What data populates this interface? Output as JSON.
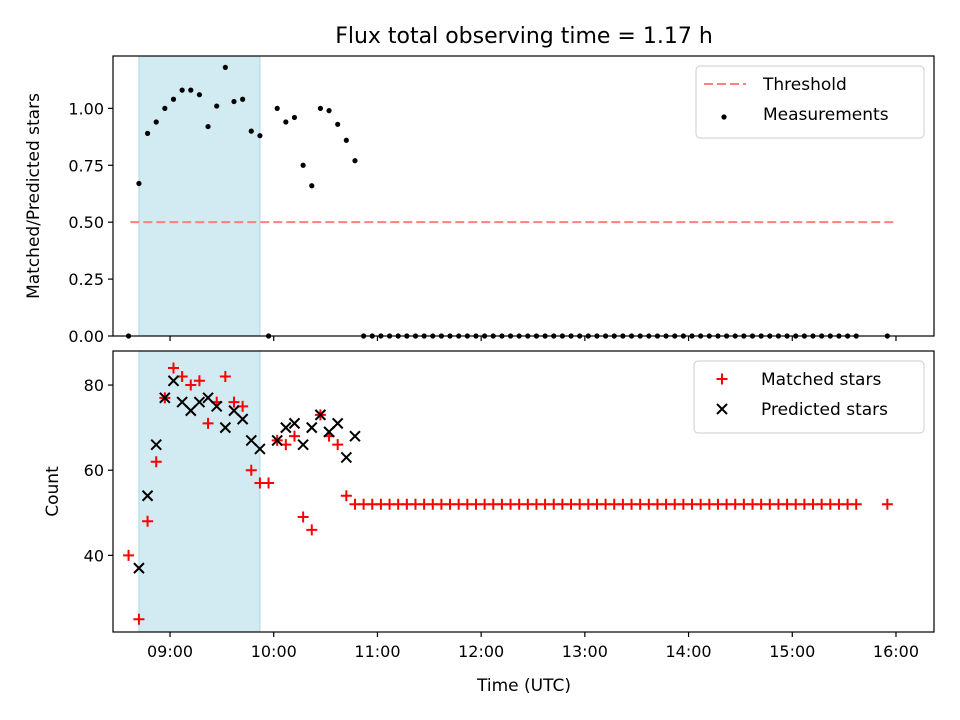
{
  "figure": {
    "title": "Flux total observing time = 1.17 h",
    "xlabel": "Time (UTC)"
  },
  "chart_data": [
    {
      "type": "scatter",
      "name": "top",
      "ylabel": "Matched/Predicted stars",
      "ylim": [
        0,
        1.23
      ],
      "xlim": [
        "08:27",
        "16:22"
      ],
      "yticks": [
        0.0,
        0.25,
        0.5,
        0.75,
        1.0
      ],
      "ytick_labels": [
        "0.00",
        "0.25",
        "0.50",
        "0.75",
        "1.00"
      ],
      "shaded_interval": [
        "08:42",
        "09:52"
      ],
      "legend_position": "upper right",
      "threshold": {
        "name": "Threshold",
        "value": 0.5,
        "x_range": [
          "08:37",
          "15:59"
        ],
        "color": "#ff7f7f"
      },
      "series": [
        {
          "name": "Measurements",
          "color": "#000000",
          "x": [
            "08:36",
            "08:42",
            "08:47",
            "08:52",
            "08:57",
            "09:02",
            "09:07",
            "09:12",
            "09:17",
            "09:22",
            "09:27",
            "09:32",
            "09:37",
            "09:42",
            "09:47",
            "09:52",
            "09:57",
            "10:02",
            "10:07",
            "10:12",
            "10:17",
            "10:22",
            "10:27",
            "10:32",
            "10:37",
            "10:42",
            "10:47",
            "10:52",
            "10:57",
            "11:02",
            "11:07",
            "11:12",
            "11:17",
            "11:22",
            "11:27",
            "11:32",
            "11:37",
            "11:42",
            "11:47",
            "11:52",
            "11:57",
            "12:02",
            "12:07",
            "12:12",
            "12:17",
            "12:22",
            "12:27",
            "12:32",
            "12:37",
            "12:42",
            "12:47",
            "12:52",
            "12:57",
            "13:02",
            "13:07",
            "13:12",
            "13:17",
            "13:22",
            "13:27",
            "13:32",
            "13:37",
            "13:42",
            "13:47",
            "13:52",
            "13:57",
            "14:02",
            "14:07",
            "14:12",
            "14:17",
            "14:22",
            "14:27",
            "14:32",
            "14:37",
            "14:42",
            "14:47",
            "14:52",
            "14:57",
            "15:02",
            "15:07",
            "15:12",
            "15:17",
            "15:22",
            "15:27",
            "15:32",
            "15:37",
            "15:55"
          ],
          "y": [
            0.0,
            0.67,
            0.89,
            0.94,
            1.0,
            1.04,
            1.08,
            1.08,
            1.06,
            0.92,
            1.01,
            1.18,
            1.03,
            1.04,
            0.9,
            0.88,
            0.0,
            1.0,
            0.94,
            0.96,
            0.75,
            0.66,
            1.0,
            0.99,
            0.93,
            0.86,
            0.77,
            0,
            0,
            0,
            0,
            0,
            0,
            0,
            0,
            0,
            0,
            0,
            0,
            0,
            0,
            0,
            0,
            0,
            0,
            0,
            0,
            0,
            0,
            0,
            0,
            0,
            0,
            0,
            0,
            0,
            0,
            0,
            0,
            0,
            0,
            0,
            0,
            0,
            0,
            0,
            0,
            0,
            0,
            0,
            0,
            0,
            0,
            0,
            0,
            0,
            0,
            0,
            0,
            0,
            0,
            0,
            0,
            0,
            0,
            0
          ]
        }
      ]
    },
    {
      "type": "scatter",
      "name": "bottom",
      "ylabel": "Count",
      "ylim": [
        22,
        88
      ],
      "xlim": [
        "08:27",
        "16:22"
      ],
      "yticks": [
        40,
        60,
        80
      ],
      "ytick_labels": [
        "40",
        "60",
        "80"
      ],
      "xticks": [
        "09:00",
        "10:00",
        "11:00",
        "12:00",
        "13:00",
        "14:00",
        "15:00",
        "16:00"
      ],
      "shaded_interval": [
        "08:42",
        "09:52"
      ],
      "legend_position": "upper right",
      "series": [
        {
          "name": "Matched stars",
          "marker": "+",
          "color": "#ff0000",
          "x": [
            "08:36",
            "08:42",
            "08:47",
            "08:52",
            "08:57",
            "09:02",
            "09:07",
            "09:12",
            "09:17",
            "09:22",
            "09:27",
            "09:32",
            "09:37",
            "09:42",
            "09:47",
            "09:52",
            "09:57",
            "10:02",
            "10:07",
            "10:12",
            "10:17",
            "10:22",
            "10:27",
            "10:32",
            "10:37",
            "10:42",
            "10:47",
            "10:52",
            "10:57",
            "11:02",
            "11:07",
            "11:12",
            "11:17",
            "11:22",
            "11:27",
            "11:32",
            "11:37",
            "11:42",
            "11:47",
            "11:52",
            "11:57",
            "12:02",
            "12:07",
            "12:12",
            "12:17",
            "12:22",
            "12:27",
            "12:32",
            "12:37",
            "12:42",
            "12:47",
            "12:52",
            "12:57",
            "13:02",
            "13:07",
            "13:12",
            "13:17",
            "13:22",
            "13:27",
            "13:32",
            "13:37",
            "13:42",
            "13:47",
            "13:52",
            "13:57",
            "14:02",
            "14:07",
            "14:12",
            "14:17",
            "14:22",
            "14:27",
            "14:32",
            "14:37",
            "14:42",
            "14:47",
            "14:52",
            "14:57",
            "15:02",
            "15:07",
            "15:12",
            "15:17",
            "15:22",
            "15:27",
            "15:32",
            "15:37",
            "15:55"
          ],
          "y": [
            40,
            25,
            48,
            62,
            77,
            84,
            82,
            80,
            81,
            71,
            76,
            82,
            76,
            75,
            60,
            57,
            57,
            67,
            66,
            68,
            49,
            46,
            73,
            68,
            66,
            54,
            52,
            52,
            52,
            52,
            52,
            52,
            52,
            52,
            52,
            52,
            52,
            52,
            52,
            52,
            52,
            52,
            52,
            52,
            52,
            52,
            52,
            52,
            52,
            52,
            52,
            52,
            52,
            52,
            52,
            52,
            52,
            52,
            52,
            52,
            52,
            52,
            52,
            52,
            52,
            52,
            52,
            52,
            52,
            52,
            52,
            52,
            52,
            52,
            52,
            52,
            52,
            52,
            52,
            52,
            52,
            52,
            52,
            52,
            52,
            52
          ]
        },
        {
          "name": "Predicted stars",
          "marker": "x",
          "color": "#000000",
          "x": [
            "08:42",
            "08:47",
            "08:52",
            "08:57",
            "09:02",
            "09:07",
            "09:12",
            "09:17",
            "09:22",
            "09:27",
            "09:32",
            "09:37",
            "09:42",
            "09:47",
            "09:52",
            "10:02",
            "10:07",
            "10:12",
            "10:17",
            "10:22",
            "10:27",
            "10:32",
            "10:37",
            "10:42",
            "10:47"
          ],
          "y": [
            37,
            54,
            66,
            77,
            81,
            76,
            74,
            76,
            77,
            75,
            70,
            74,
            72,
            67,
            65,
            67,
            70,
            71,
            66,
            70,
            73,
            69,
            71,
            63,
            68
          ]
        }
      ]
    }
  ]
}
